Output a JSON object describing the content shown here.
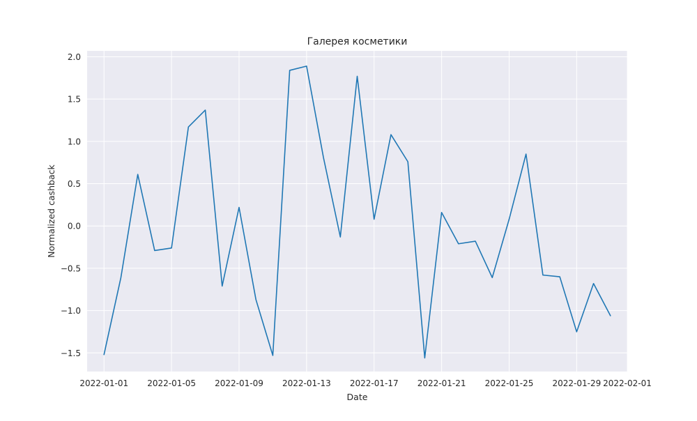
{
  "chart_data": {
    "type": "line",
    "title": "Галерея косметики",
    "xlabel": "Date",
    "ylabel": "Normalized cashback",
    "grid": true,
    "background": "#eaeaf2",
    "line_color": "#1f77b4",
    "x_range": [
      "2021-12-31",
      "2022-02-01"
    ],
    "ylim": [
      -1.72,
      2.07
    ],
    "x_ticks": [
      "2022-01-01",
      "2022-01-05",
      "2022-01-09",
      "2022-01-13",
      "2022-01-17",
      "2022-01-21",
      "2022-01-25",
      "2022-01-29",
      "2022-02-01"
    ],
    "y_ticks": [
      -1.5,
      -1.0,
      -0.5,
      0.0,
      0.5,
      1.0,
      1.5,
      2.0
    ],
    "y_tick_labels": [
      "−1.5",
      "−1.0",
      "−0.5",
      "0.0",
      "0.5",
      "1.0",
      "1.5",
      "2.0"
    ],
    "x": [
      "2022-01-01",
      "2022-01-02",
      "2022-01-03",
      "2022-01-04",
      "2022-01-05",
      "2022-01-06",
      "2022-01-07",
      "2022-01-08",
      "2022-01-09",
      "2022-01-10",
      "2022-01-11",
      "2022-01-12",
      "2022-01-13",
      "2022-01-14",
      "2022-01-15",
      "2022-01-16",
      "2022-01-17",
      "2022-01-18",
      "2022-01-19",
      "2022-01-20",
      "2022-01-21",
      "2022-01-22",
      "2022-01-23",
      "2022-01-24",
      "2022-01-25",
      "2022-01-26",
      "2022-01-27",
      "2022-01-28",
      "2022-01-29",
      "2022-01-30",
      "2022-01-31"
    ],
    "series": [
      {
        "values": [
          -1.52,
          -0.61,
          0.61,
          -0.29,
          -0.26,
          1.17,
          1.37,
          -0.71,
          0.22,
          -0.87,
          -1.53,
          1.84,
          1.89,
          0.81,
          -0.13,
          1.77,
          0.08,
          1.08,
          0.76,
          -1.56,
          0.16,
          -0.21,
          -0.18,
          -0.61,
          0.08,
          0.85,
          -0.58,
          -0.6,
          -1.25,
          -0.68,
          -1.06
        ]
      }
    ]
  }
}
